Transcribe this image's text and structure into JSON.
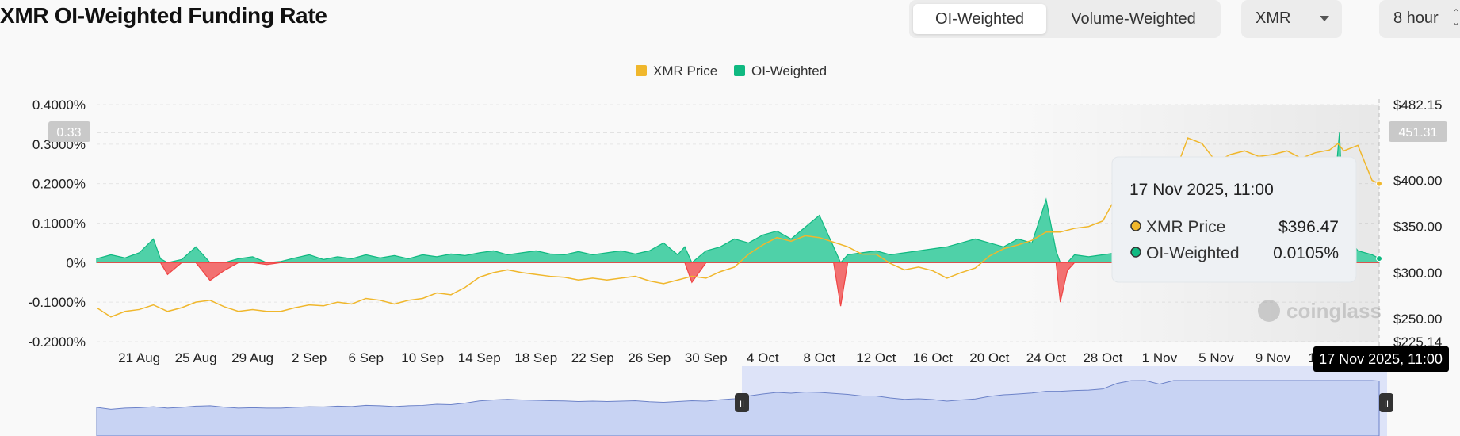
{
  "header": {
    "title": "XMR OI-Weighted Funding Rate",
    "tabs": [
      "OI-Weighted",
      "Volume-Weighted"
    ],
    "active_tab": 0,
    "symbol": "XMR",
    "interval": "8 hour"
  },
  "watermark": "coinglass",
  "crosshair": {
    "left_value": "0.33",
    "right_value": "451.31",
    "x_label": "17 Nov 2025, 11:00"
  },
  "tooltip": {
    "date": "17 Nov 2025, 11:00",
    "rows": [
      {
        "label": "XMR Price",
        "value": "$396.47",
        "color": "#f0b72c"
      },
      {
        "label": "OI-Weighted",
        "value": "0.0105%",
        "color": "#10b981"
      }
    ]
  },
  "colors": {
    "price": "#f0b72c",
    "positive": "#10b981",
    "negative": "#ef4444",
    "navigator": "#c8d3f3"
  },
  "chart_data": {
    "type": "area",
    "legend": [
      "XMR Price",
      "OI-Weighted"
    ],
    "legend_position": "top-center",
    "x_ticks": [
      "21 Aug",
      "25 Aug",
      "29 Aug",
      "2 Sep",
      "6 Sep",
      "10 Sep",
      "14 Sep",
      "18 Sep",
      "22 Sep",
      "26 Sep",
      "30 Sep",
      "4 Oct",
      "8 Oct",
      "12 Oct",
      "16 Oct",
      "20 Oct",
      "24 Oct",
      "28 Oct",
      "1 Nov",
      "5 Nov",
      "9 Nov",
      "13 Nov"
    ],
    "y_left": {
      "ticks": [
        "0.4000%",
        "0.3000%",
        "0.2000%",
        "0.1000%",
        "0%",
        "-0.1000%",
        "-0.2000%"
      ],
      "min": -0.2,
      "max": 0.4
    },
    "y_right": {
      "ticks": [
        "$482.15",
        "$400.00",
        "$350.00",
        "$300.00",
        "$250.00",
        "$225.14"
      ],
      "min": 225.14,
      "max": 482.15
    },
    "grid": "horizontal dashed",
    "x_day_range": [
      -3,
      87.5
    ],
    "series": [
      {
        "name": "OI-Weighted",
        "unit": "%",
        "points": [
          [
            -3,
            0.01
          ],
          [
            -2,
            0.02
          ],
          [
            -1,
            0.012
          ],
          [
            0,
            0.025
          ],
          [
            1,
            0.06
          ],
          [
            1.5,
            0.01
          ],
          [
            2,
            -0.03
          ],
          [
            3,
            0.008
          ],
          [
            4,
            0.04
          ],
          [
            5,
            -0.045
          ],
          [
            6,
            -0.02
          ],
          [
            7,
            0.01
          ],
          [
            8,
            0.015
          ],
          [
            9,
            -0.005
          ],
          [
            10,
            0.003
          ],
          [
            11,
            0.012
          ],
          [
            12,
            0.02
          ],
          [
            13,
            0.008
          ],
          [
            14,
            0.015
          ],
          [
            15,
            0.01
          ],
          [
            16,
            0.02
          ],
          [
            17,
            0.012
          ],
          [
            18,
            0.018
          ],
          [
            19,
            0.01
          ],
          [
            20,
            0.02
          ],
          [
            21,
            0.015
          ],
          [
            22,
            0.022
          ],
          [
            23,
            0.018
          ],
          [
            24,
            0.025
          ],
          [
            25,
            0.03
          ],
          [
            26,
            0.02
          ],
          [
            27,
            0.025
          ],
          [
            28,
            0.03
          ],
          [
            29,
            0.022
          ],
          [
            30,
            0.02
          ],
          [
            31,
            0.028
          ],
          [
            32,
            0.02
          ],
          [
            33,
            0.025
          ],
          [
            34,
            0.03
          ],
          [
            35,
            0.022
          ],
          [
            36,
            0.03
          ],
          [
            37,
            0.05
          ],
          [
            38,
            0.02
          ],
          [
            38.5,
            0.04
          ],
          [
            39,
            -0.05
          ],
          [
            40,
            0.03
          ],
          [
            41,
            0.04
          ],
          [
            42,
            0.06
          ],
          [
            43,
            0.05
          ],
          [
            44,
            0.07
          ],
          [
            45,
            0.08
          ],
          [
            46,
            0.06
          ],
          [
            47,
            0.09
          ],
          [
            48,
            0.12
          ],
          [
            49,
            0.04
          ],
          [
            49.5,
            -0.11
          ],
          [
            50,
            0.02
          ],
          [
            51,
            0.025
          ],
          [
            52,
            0.03
          ],
          [
            53,
            0.02
          ],
          [
            54,
            0.025
          ],
          [
            55,
            0.03
          ],
          [
            56,
            0.035
          ],
          [
            57,
            0.04
          ],
          [
            58,
            0.05
          ],
          [
            59,
            0.06
          ],
          [
            60,
            0.05
          ],
          [
            61,
            0.04
          ],
          [
            62,
            0.06
          ],
          [
            63,
            0.05
          ],
          [
            64,
            0.16
          ],
          [
            64.7,
            0.03
          ],
          [
            65,
            -0.1
          ],
          [
            65.5,
            -0.02
          ],
          [
            66,
            0.02
          ],
          [
            67,
            0.015
          ],
          [
            68,
            0.02
          ],
          [
            69,
            0.025
          ],
          [
            70,
            0.03
          ],
          [
            71,
            0.02
          ],
          [
            72,
            0.01
          ],
          [
            72.5,
            -0.04
          ],
          [
            73,
            0.02
          ],
          [
            74,
            0.025
          ],
          [
            75,
            0.02
          ],
          [
            76,
            0.015
          ],
          [
            77,
            0.01
          ],
          [
            77.5,
            -0.035
          ],
          [
            78,
            0.02
          ],
          [
            79,
            0.04
          ],
          [
            80,
            0.05
          ],
          [
            81,
            0.07
          ],
          [
            82,
            0.06
          ],
          [
            83,
            0.05
          ],
          [
            84,
            0.045
          ],
          [
            84.7,
            0.33
          ],
          [
            85,
            0.08
          ],
          [
            86,
            0.03
          ],
          [
            87,
            0.02
          ],
          [
            87.5,
            0.0105
          ]
        ]
      },
      {
        "name": "XMR Price",
        "unit": "$",
        "points": [
          [
            -3,
            262
          ],
          [
            -2,
            252
          ],
          [
            -1,
            258
          ],
          [
            0,
            260
          ],
          [
            1,
            265
          ],
          [
            2,
            258
          ],
          [
            3,
            262
          ],
          [
            4,
            268
          ],
          [
            5,
            270
          ],
          [
            6,
            263
          ],
          [
            7,
            258
          ],
          [
            8,
            260
          ],
          [
            9,
            258
          ],
          [
            10,
            258
          ],
          [
            11,
            262
          ],
          [
            12,
            265
          ],
          [
            13,
            264
          ],
          [
            14,
            268
          ],
          [
            15,
            266
          ],
          [
            16,
            272
          ],
          [
            17,
            270
          ],
          [
            18,
            266
          ],
          [
            19,
            270
          ],
          [
            20,
            272
          ],
          [
            21,
            278
          ],
          [
            22,
            276
          ],
          [
            23,
            284
          ],
          [
            24,
            295
          ],
          [
            25,
            300
          ],
          [
            26,
            303
          ],
          [
            27,
            300
          ],
          [
            28,
            298
          ],
          [
            29,
            296
          ],
          [
            30,
            295
          ],
          [
            31,
            292
          ],
          [
            32,
            294
          ],
          [
            33,
            292
          ],
          [
            34,
            294
          ],
          [
            35,
            296
          ],
          [
            36,
            291
          ],
          [
            37,
            288
          ],
          [
            38,
            292
          ],
          [
            39,
            296
          ],
          [
            40,
            294
          ],
          [
            41,
            301
          ],
          [
            42,
            306
          ],
          [
            43,
            320
          ],
          [
            44,
            330
          ],
          [
            45,
            338
          ],
          [
            46,
            334
          ],
          [
            47,
            340
          ],
          [
            48,
            338
          ],
          [
            49,
            333
          ],
          [
            50,
            328
          ],
          [
            51,
            320
          ],
          [
            52,
            320
          ],
          [
            53,
            310
          ],
          [
            54,
            303
          ],
          [
            55,
            306
          ],
          [
            56,
            302
          ],
          [
            57,
            294
          ],
          [
            58,
            300
          ],
          [
            59,
            305
          ],
          [
            60,
            318
          ],
          [
            61,
            326
          ],
          [
            62,
            330
          ],
          [
            63,
            335
          ],
          [
            64,
            344
          ],
          [
            65,
            344
          ],
          [
            66,
            348
          ],
          [
            67,
            350
          ],
          [
            68,
            356
          ],
          [
            69,
            384
          ],
          [
            70,
            398
          ],
          [
            71,
            410
          ],
          [
            72,
            380
          ],
          [
            73,
            405
          ],
          [
            74,
            446
          ],
          [
            75,
            440
          ],
          [
            76,
            420
          ],
          [
            77,
            428
          ],
          [
            78,
            432
          ],
          [
            79,
            426
          ],
          [
            80,
            428
          ],
          [
            81,
            432
          ],
          [
            82,
            424
          ],
          [
            83,
            430
          ],
          [
            84,
            433
          ],
          [
            84.6,
            440
          ],
          [
            85,
            432
          ],
          [
            86,
            438
          ],
          [
            87,
            400
          ],
          [
            87.5,
            396.47
          ]
        ]
      }
    ]
  }
}
